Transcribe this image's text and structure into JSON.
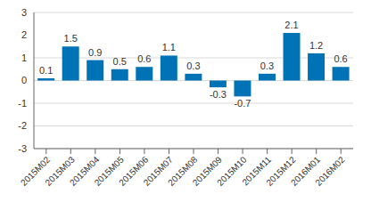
{
  "chart_data": {
    "type": "bar",
    "categories": [
      "2015M02",
      "2015M03",
      "2015M04",
      "2015M05",
      "2015M06",
      "2015M07",
      "2015M08",
      "2015M09",
      "2015M10",
      "2015M11",
      "2015M12",
      "2016M01",
      "2016M02"
    ],
    "values": [
      0.1,
      1.5,
      0.9,
      0.5,
      0.6,
      1.1,
      0.3,
      -0.3,
      -0.7,
      0.3,
      2.1,
      1.2,
      0.6
    ],
    "color": "#0073b7",
    "ylim": [
      -3,
      3
    ],
    "yticks": [
      -3,
      -2,
      -1,
      0,
      1,
      2,
      3
    ],
    "grid": true,
    "data_labels": true
  }
}
